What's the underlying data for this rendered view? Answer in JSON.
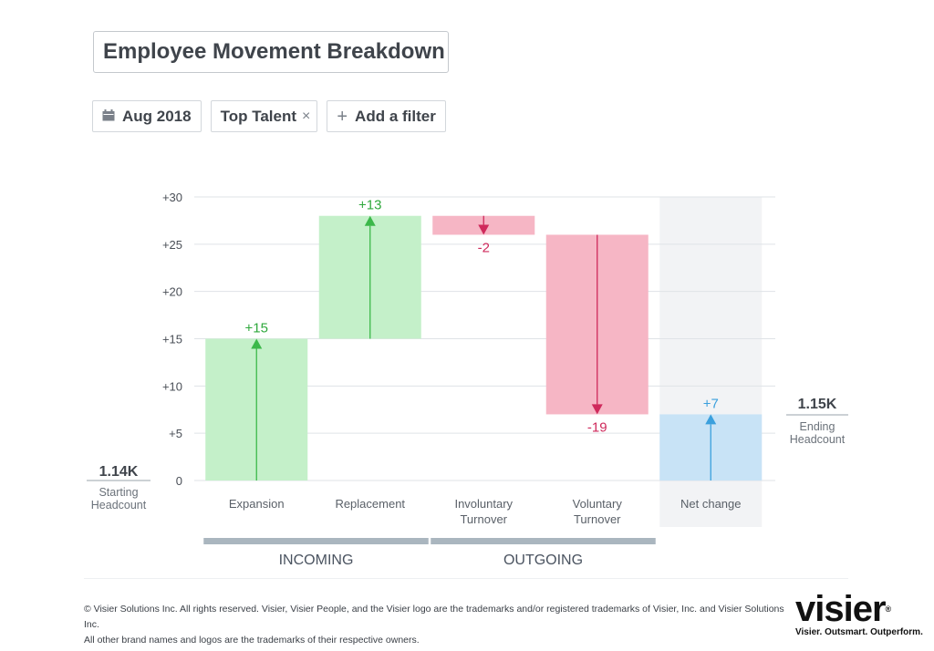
{
  "header": {
    "title": "Employee Movement Breakdown"
  },
  "filters": {
    "date_label": "Aug 2018",
    "date_icon": "calendar-icon",
    "talent_label": "Top Talent",
    "remove_symbol": "×",
    "add_symbol": "+",
    "add_label": "Add a filter"
  },
  "chart_data": {
    "type": "waterfall",
    "title": "",
    "y_ticks": [
      "+30",
      "+25",
      "+20",
      "+15",
      "+10",
      "+5",
      "0"
    ],
    "ylim": [
      0,
      30
    ],
    "grid": true,
    "bars": [
      {
        "name": "Expansion",
        "label_lines": [
          "Expansion"
        ],
        "start": 0,
        "end": 15,
        "delta_label": "+15",
        "kind": "incoming"
      },
      {
        "name": "Replacement",
        "label_lines": [
          "Replacement"
        ],
        "start": 15,
        "end": 28,
        "delta_label": "+13",
        "kind": "incoming"
      },
      {
        "name": "Involuntary Turnover",
        "label_lines": [
          "Involuntary",
          "Turnover"
        ],
        "start": 28,
        "end": 26,
        "delta_label": "-2",
        "kind": "outgoing"
      },
      {
        "name": "Voluntary Turnover",
        "label_lines": [
          "Voluntary",
          "Turnover"
        ],
        "start": 26,
        "end": 7,
        "delta_label": "-19",
        "kind": "outgoing"
      },
      {
        "name": "Net change",
        "label_lines": [
          "Net change"
        ],
        "start": 0,
        "end": 7,
        "delta_label": "+7",
        "kind": "net"
      }
    ],
    "groups": [
      {
        "label": "INCOMING",
        "bars": [
          "Expansion",
          "Replacement"
        ]
      },
      {
        "label": "OUTGOING",
        "bars": [
          "Involuntary Turnover",
          "Voluntary Turnover"
        ]
      }
    ],
    "start_headcount": {
      "value": "1.14K",
      "label_lines": [
        "Starting",
        "Headcount"
      ]
    },
    "end_headcount": {
      "value": "1.15K",
      "label_lines": [
        "Ending",
        "Headcount"
      ]
    },
    "colors": {
      "incoming_fill": "#c4f0c9",
      "incoming_stroke": "#3cb84a",
      "incoming_text": "#2fa83c",
      "outgoing_fill": "#f6b6c5",
      "outgoing_stroke": "#cf2a5c",
      "outgoing_text": "#cf2a5c",
      "net_fill": "#c8e3f6",
      "net_stroke": "#3ba0dd",
      "net_text": "#3ba0dd",
      "net_highlight": "#f2f3f5",
      "group_bar": "#aab6bf",
      "grid": "#dfe3e7",
      "axis_text": "#4a4f57"
    }
  },
  "footer": {
    "copyright_line1": "© Visier Solutions Inc. All rights reserved. Visier, Visier People, and the Visier logo are the trademarks and/or registered trademarks of Visier, Inc. and Visier Solutions Inc.",
    "copyright_line2": "All other brand names and logos are the trademarks of their respective owners."
  },
  "logo": {
    "wordmark": "visier",
    "registered": "®",
    "tagline": "Visier. Outsmart. Outperform."
  }
}
